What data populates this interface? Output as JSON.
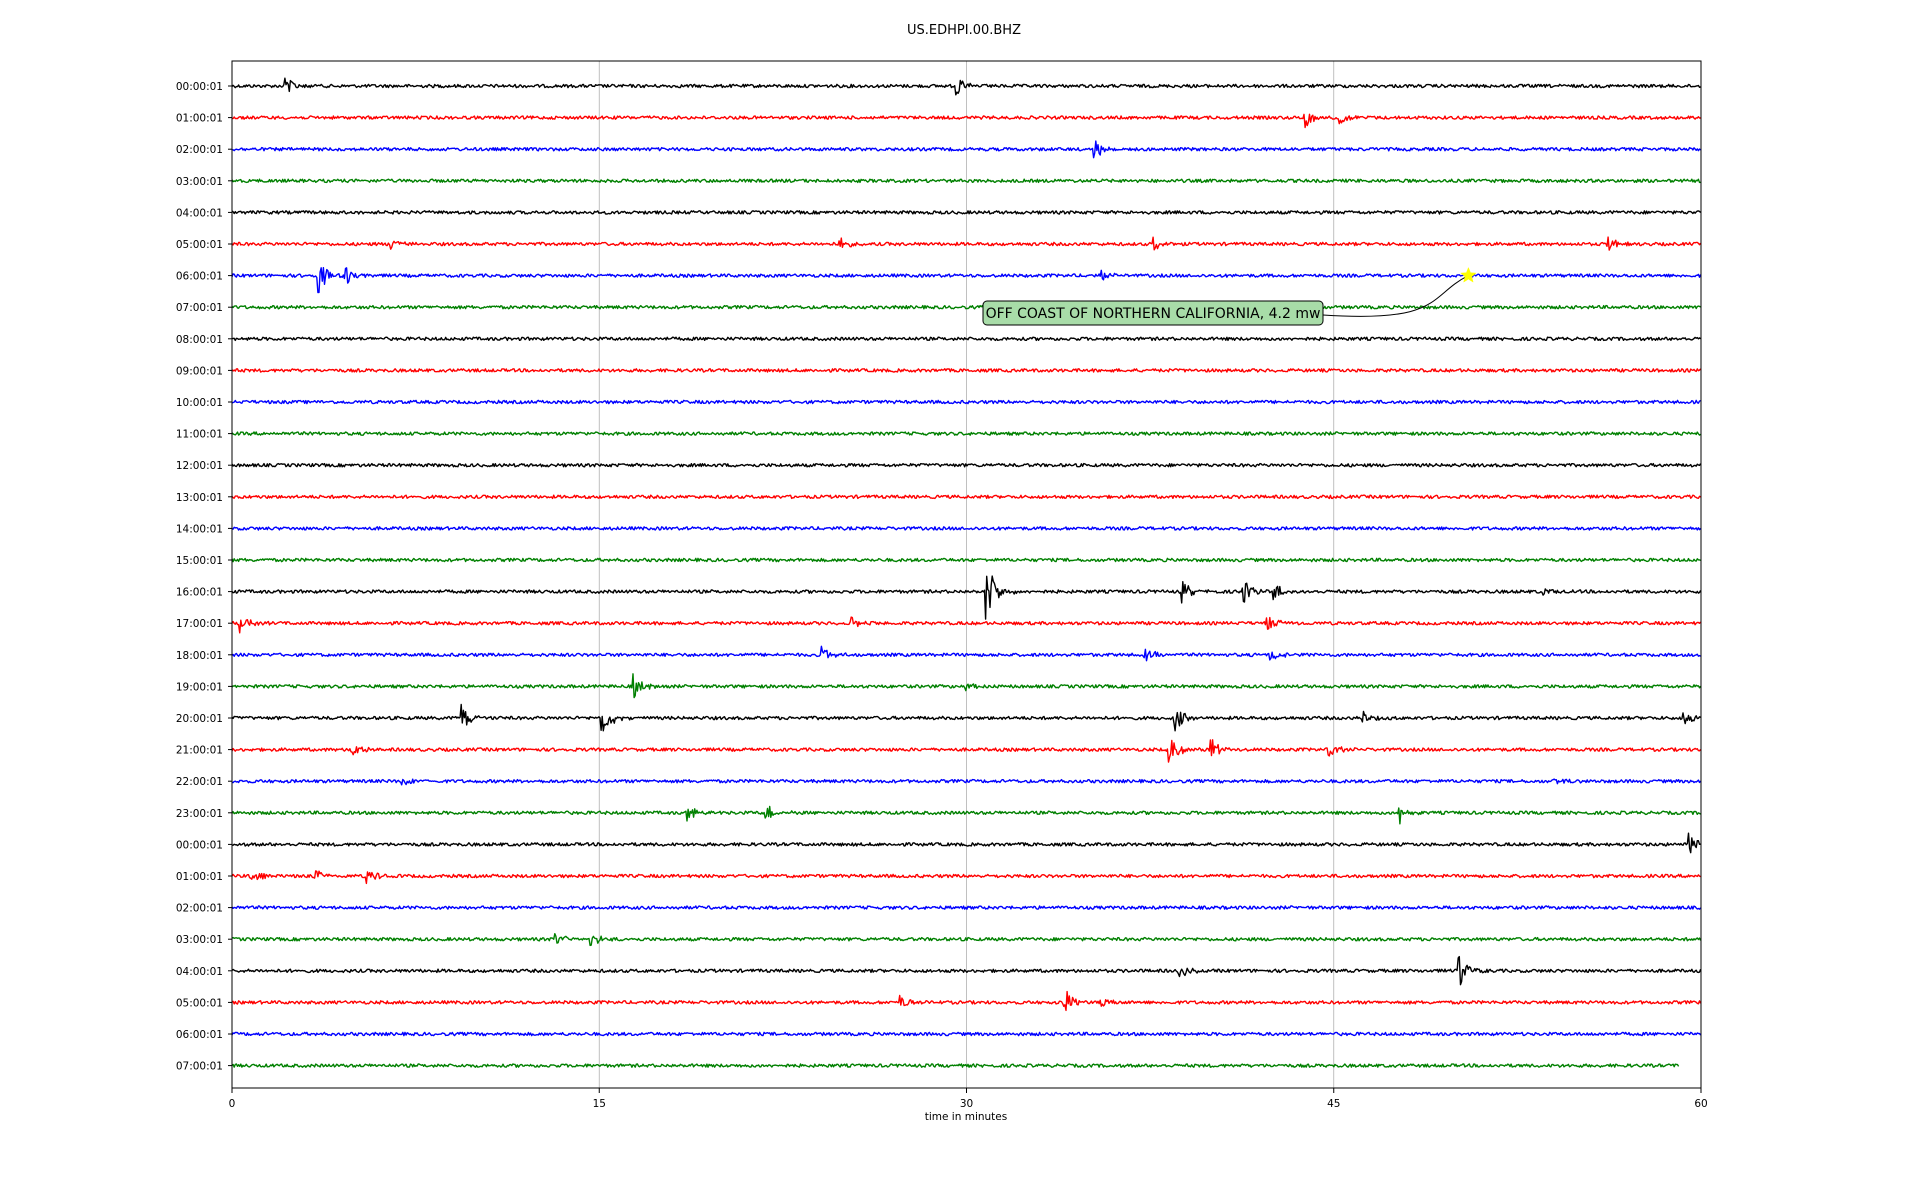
{
  "chart_data": {
    "type": "line",
    "title": "US.EDHPI.00.BHZ",
    "xlabel": "time in minutes",
    "xlim": [
      0,
      60
    ],
    "xticks": [
      0,
      15,
      30,
      45,
      60
    ],
    "xtick_labels": [
      "0",
      "15",
      "30",
      "45",
      "60"
    ],
    "grid": "vertical",
    "colors": [
      "#000000",
      "#ff0000",
      "#0000ff",
      "#008000"
    ],
    "rows": [
      {
        "label": "00:00:01",
        "events": [
          [
            2.2,
            0.45
          ],
          [
            29.6,
            0.5
          ]
        ]
      },
      {
        "label": "01:00:01",
        "events": [
          [
            43.8,
            0.6
          ],
          [
            45.2,
            0.3
          ]
        ]
      },
      {
        "label": "02:00:01",
        "events": [
          [
            35.2,
            0.5
          ]
        ]
      },
      {
        "label": "03:00:01",
        "events": []
      },
      {
        "label": "04:00:01",
        "events": []
      },
      {
        "label": "05:00:01",
        "events": [
          [
            6.5,
            0.35
          ],
          [
            24.8,
            0.3
          ],
          [
            37.6,
            0.35
          ],
          [
            56.2,
            0.4
          ]
        ]
      },
      {
        "label": "06:00:01",
        "events": [
          [
            3.5,
            0.9
          ],
          [
            4.6,
            0.55
          ],
          [
            35.5,
            0.25
          ]
        ]
      },
      {
        "label": "07:00:01",
        "events": []
      },
      {
        "label": "08:00:01",
        "events": []
      },
      {
        "label": "09:00:01",
        "events": []
      },
      {
        "label": "10:00:01",
        "events": []
      },
      {
        "label": "11:00:01",
        "events": []
      },
      {
        "label": "12:00:01",
        "events": []
      },
      {
        "label": "13:00:01",
        "events": []
      },
      {
        "label": "14:00:01",
        "events": []
      },
      {
        "label": "15:00:01",
        "events": []
      },
      {
        "label": "16:00:01",
        "events": [
          [
            30.8,
            1.8
          ],
          [
            38.8,
            0.5
          ],
          [
            41.3,
            0.6
          ],
          [
            42.5,
            0.5
          ],
          [
            53.5,
            0.3
          ]
        ]
      },
      {
        "label": "17:00:01",
        "events": [
          [
            0.3,
            0.55
          ],
          [
            25.3,
            0.3
          ],
          [
            42.3,
            0.4
          ]
        ]
      },
      {
        "label": "18:00:01",
        "events": [
          [
            24.1,
            0.4
          ],
          [
            37.3,
            0.35
          ],
          [
            42.4,
            0.4
          ]
        ]
      },
      {
        "label": "19:00:01",
        "events": [
          [
            16.4,
            0.55
          ],
          [
            30.0,
            0.3
          ]
        ]
      },
      {
        "label": "20:00:01",
        "events": [
          [
            9.4,
            0.65
          ],
          [
            15.1,
            0.9
          ],
          [
            38.5,
            0.6
          ],
          [
            46.2,
            0.35
          ],
          [
            59.3,
            0.5
          ]
        ]
      },
      {
        "label": "21:00:01",
        "events": [
          [
            4.9,
            0.4
          ],
          [
            38.3,
            0.75
          ],
          [
            40.0,
            0.55
          ],
          [
            44.8,
            0.4
          ]
        ]
      },
      {
        "label": "22:00:01",
        "events": [
          [
            6.9,
            0.3
          ],
          [
            54.0,
            0.2
          ]
        ]
      },
      {
        "label": "23:00:01",
        "events": [
          [
            18.6,
            0.4
          ],
          [
            21.8,
            0.45
          ],
          [
            47.7,
            0.55
          ]
        ]
      },
      {
        "label": "00:00:01",
        "events": [
          [
            59.5,
            0.55
          ]
        ]
      },
      {
        "label": "01:00:01",
        "events": [
          [
            0.8,
            0.3
          ],
          [
            3.4,
            0.35
          ],
          [
            5.5,
            0.45
          ]
        ]
      },
      {
        "label": "02:00:01",
        "events": []
      },
      {
        "label": "03:00:01",
        "events": [
          [
            13.2,
            0.4
          ],
          [
            14.6,
            0.45
          ]
        ]
      },
      {
        "label": "04:00:01",
        "events": [
          [
            38.7,
            0.3
          ],
          [
            50.1,
            0.8
          ]
        ]
      },
      {
        "label": "05:00:01",
        "events": [
          [
            27.3,
            0.35
          ],
          [
            34.0,
            0.75
          ],
          [
            35.5,
            0.35
          ]
        ]
      },
      {
        "label": "06:00:01",
        "events": []
      },
      {
        "label": "07:00:01",
        "events": [],
        "end": 59.1
      }
    ],
    "annotation": {
      "text": "OFF COAST OF NORTHERN CALIFORNIA, 4.2 mw",
      "row": 6,
      "x": 50.5,
      "marker": "star",
      "marker_color": "#ffff00",
      "box_color": "#a8dca8"
    }
  }
}
